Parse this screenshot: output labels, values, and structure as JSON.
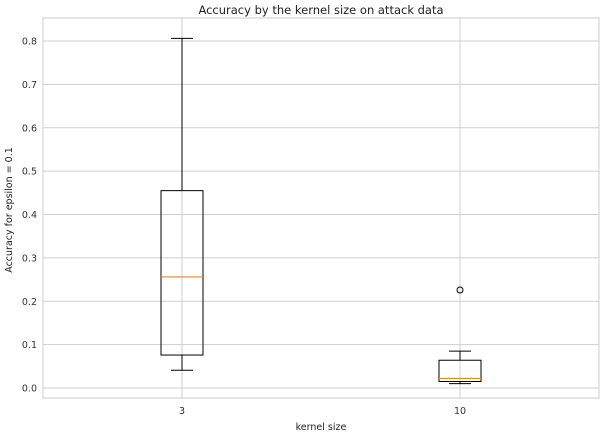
{
  "chart_data": {
    "type": "box",
    "title": "Accuracy by the kernel size on attack data",
    "xlabel": "kernel size",
    "ylabel": "Accuracy for epsilon = 0.1",
    "ylim": [
      -0.03,
      0.84
    ],
    "yticks": [
      0.0,
      0.1,
      0.2,
      0.3,
      0.4,
      0.5,
      0.6,
      0.7,
      0.8
    ],
    "ytick_labels": [
      "0.0",
      "0.1",
      "0.2",
      "0.3",
      "0.4",
      "0.5",
      "0.6",
      "0.7",
      "0.8"
    ],
    "grid": true,
    "categories": [
      "3",
      "10"
    ],
    "boxes": [
      {
        "label": "3",
        "whisker_low": 0.041,
        "q1": 0.076,
        "median": 0.256,
        "q3": 0.455,
        "whisker_high": 0.806,
        "outliers": []
      },
      {
        "label": "10",
        "whisker_low": 0.01,
        "q1": 0.015,
        "median": 0.022,
        "q3": 0.064,
        "whisker_high": 0.085,
        "outliers": [
          0.226
        ]
      }
    ],
    "colors": {
      "box": "#000000",
      "median": "#e8891f",
      "grid": "#cfcfcf",
      "frame": "#cccccc"
    }
  }
}
